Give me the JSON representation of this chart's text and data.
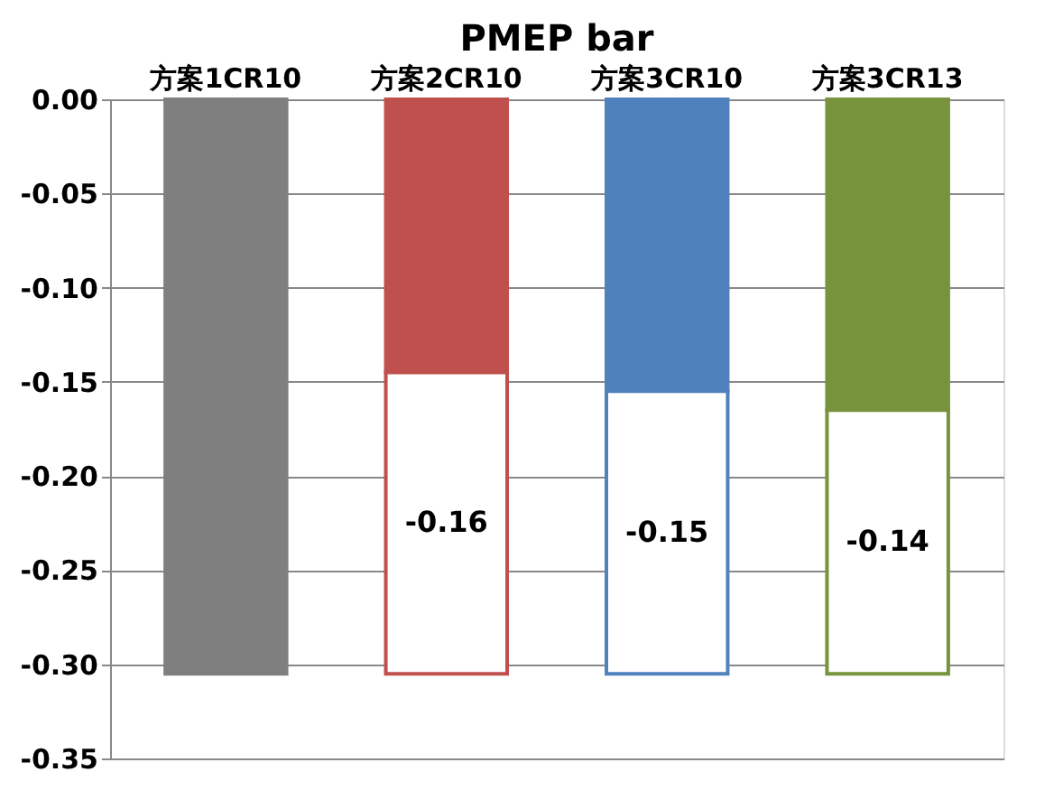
{
  "chart_data": {
    "type": "bar",
    "title": "PMEP bar",
    "categories": [
      "方案1CR10",
      "方案2CR10",
      "方案3CR10",
      "方案3CR13"
    ],
    "stacked": true,
    "series": [
      {
        "colors": [
          "#7f7f7f",
          "#c0504d",
          "#4f81bd",
          "#77933c"
        ],
        "values": [
          -0.305,
          -0.145,
          -0.155,
          -0.165
        ]
      },
      {
        "colors": [
          "#ffffff",
          "#ffffff",
          "#ffffff",
          "#ffffff"
        ],
        "values": [
          null,
          -0.16,
          -0.15,
          -0.14
        ],
        "value_labels": [
          null,
          "-0.16",
          "-0.15",
          "-0.14"
        ]
      }
    ],
    "ylim": [
      -0.35,
      0
    ],
    "yticks": [
      {
        "value": 0,
        "label": "0.00"
      },
      {
        "value": -0.05,
        "label": "-0.05"
      },
      {
        "value": -0.1,
        "label": "-0.10"
      },
      {
        "value": -0.15,
        "label": "-0.15"
      },
      {
        "value": -0.2,
        "label": "-0.20"
      },
      {
        "value": -0.25,
        "label": "-0.25"
      },
      {
        "value": -0.3,
        "label": "-0.30"
      },
      {
        "value": -0.35,
        "label": "-0.35"
      }
    ],
    "grid": "y"
  }
}
